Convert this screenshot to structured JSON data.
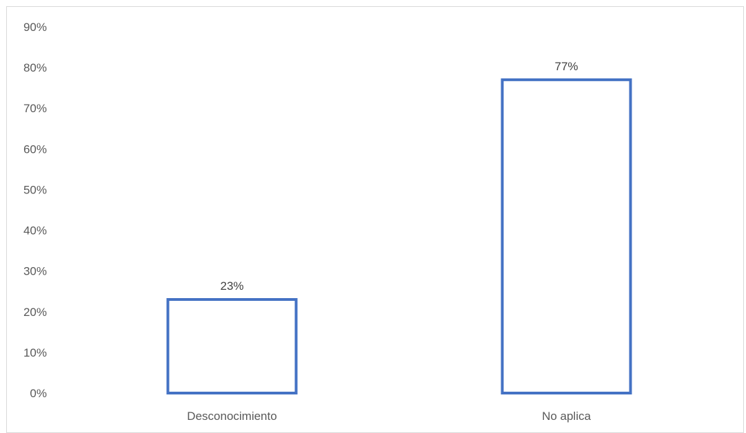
{
  "chart_data": {
    "type": "bar",
    "title": "",
    "xlabel": "",
    "ylabel": "",
    "categories": [
      "Desconocimiento",
      "No aplica"
    ],
    "values": [
      0.23,
      0.77
    ],
    "data_labels": [
      "23%",
      "77%"
    ],
    "ylim": [
      0,
      0.9
    ],
    "y_ticks": [
      0,
      0.1,
      0.2,
      0.3,
      0.4,
      0.5,
      0.6,
      0.7,
      0.8,
      0.9
    ],
    "y_tick_labels": [
      "0%",
      "10%",
      "20%",
      "30%",
      "40%",
      "50%",
      "60%",
      "70%",
      "80%",
      "90%"
    ],
    "grid": false,
    "legend": "none",
    "bar_style": "outline",
    "bar_color": "#4472c4"
  }
}
